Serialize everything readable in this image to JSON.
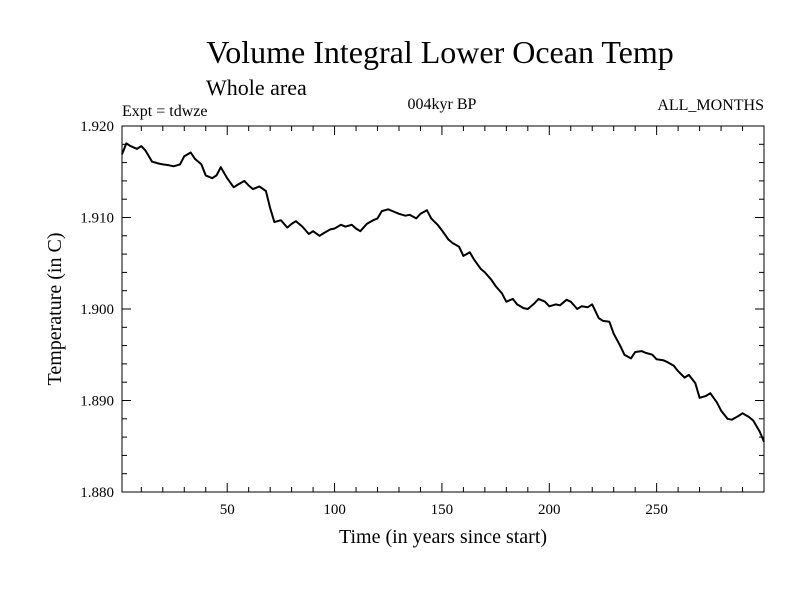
{
  "chart_data": {
    "type": "line",
    "title": "Volume Integral Lower Ocean Temp",
    "subtitle": "Whole area",
    "annotations": {
      "left": "Expt = tdwze",
      "center": "004kyr BP",
      "right": "ALL_MONTHS"
    },
    "xlabel": "Time (in years since start)",
    "ylabel": "Temperature (in C)",
    "xlim": [
      1,
      300
    ],
    "ylim": [
      1.88,
      1.92
    ],
    "x_ticks": [
      50,
      100,
      150,
      200,
      250
    ],
    "x_tick_labels": [
      "50",
      "100",
      "150",
      "200",
      "250"
    ],
    "y_ticks": [
      1.88,
      1.89,
      1.9,
      1.91,
      1.92
    ],
    "y_tick_labels": [
      "1.880",
      "1.890",
      "1.900",
      "1.910",
      "1.920"
    ],
    "grid": false,
    "colors": {
      "line": "#000000",
      "axes": "#000000",
      "background": "#ffffff"
    },
    "series": [
      {
        "values_x": [
          1,
          3,
          5,
          8,
          10,
          12,
          15,
          18,
          20,
          23,
          25,
          28,
          30,
          33,
          35,
          38,
          40,
          43,
          45,
          47,
          50,
          53,
          55,
          58,
          60,
          62,
          65,
          68,
          70,
          72,
          75,
          78,
          80,
          82,
          85,
          88,
          90,
          93,
          95,
          98,
          100,
          103,
          105,
          108,
          110,
          112,
          115,
          118,
          120,
          122,
          125,
          128,
          130,
          133,
          135,
          138,
          140,
          143,
          145,
          148,
          150,
          153,
          155,
          158,
          160,
          163,
          165,
          168,
          170,
          173,
          175,
          178,
          180,
          183,
          185,
          188,
          190,
          193,
          195,
          198,
          200,
          203,
          205,
          208,
          210,
          213,
          215,
          218,
          220,
          223,
          225,
          228,
          230,
          233,
          235,
          238,
          240,
          243,
          245,
          248,
          250,
          253,
          255,
          258,
          260,
          263,
          265,
          268,
          270,
          273,
          275,
          278,
          280,
          283,
          285,
          288,
          290,
          293,
          295,
          298,
          300
        ],
        "values_y": [
          1.9169,
          1.9181,
          1.9178,
          1.9175,
          1.9178,
          1.9173,
          1.9161,
          1.9159,
          1.9158,
          1.9157,
          1.9156,
          1.9158,
          1.9167,
          1.9171,
          1.9164,
          1.9158,
          1.9146,
          1.9143,
          1.9146,
          1.9155,
          1.9143,
          1.9133,
          1.9136,
          1.914,
          1.9135,
          1.9131,
          1.9134,
          1.9129,
          1.911,
          1.9095,
          1.9097,
          1.9089,
          1.9093,
          1.9096,
          1.909,
          1.9082,
          1.9085,
          1.908,
          1.9083,
          1.9087,
          1.9088,
          1.9092,
          1.909,
          1.9092,
          1.9088,
          1.9085,
          1.9093,
          1.9097,
          1.9099,
          1.9107,
          1.9109,
          1.9106,
          1.9104,
          1.9102,
          1.9103,
          1.9099,
          1.9104,
          1.9108,
          1.9099,
          1.9092,
          1.9086,
          1.9076,
          1.9072,
          1.9068,
          1.9058,
          1.9062,
          1.9054,
          1.9044,
          1.904,
          1.9032,
          1.9025,
          1.9017,
          1.9008,
          1.9011,
          1.9005,
          1.9001,
          1.9,
          1.9006,
          1.9011,
          1.9008,
          1.9003,
          1.9005,
          1.9004,
          1.901,
          1.9008,
          1.9,
          1.9003,
          1.9002,
          1.9005,
          1.899,
          1.8987,
          1.8986,
          1.8973,
          1.896,
          1.895,
          1.8946,
          1.8953,
          1.8954,
          1.8952,
          1.895,
          1.8945,
          1.8944,
          1.8942,
          1.8938,
          1.8932,
          1.8925,
          1.8928,
          1.8919,
          1.8903,
          1.8905,
          1.8908,
          1.8898,
          1.8889,
          1.888,
          1.8879,
          1.8883,
          1.8886,
          1.8882,
          1.8878,
          1.8866,
          1.8855
        ]
      }
    ]
  }
}
